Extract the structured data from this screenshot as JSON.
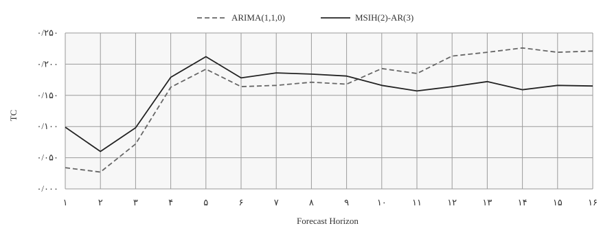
{
  "chart_data": {
    "type": "line",
    "x": [
      "۱",
      "۲",
      "۳",
      "۴",
      "۵",
      "۶",
      "۷",
      "۸",
      "۹",
      "۱۰",
      "۱۱",
      "۱۲",
      "۱۳",
      "۱۴",
      "۱۵",
      "۱۶"
    ],
    "y_ticks": [
      "۰/۰۰۰",
      "۰/۰۵۰",
      "۰/۱۰۰",
      "۰/۱۵۰",
      "۰/۲۰۰",
      "۰/۲۵۰"
    ],
    "ylim": [
      0,
      0.25
    ],
    "xlabel": "Forecast Horizon",
    "ylabel": "TC",
    "legend_position": "top-center",
    "grid": true,
    "series": [
      {
        "name": "ARIMA(1,1,0)",
        "style": "dashed",
        "color": "#666666",
        "values": [
          0.034,
          0.027,
          0.072,
          0.163,
          0.192,
          0.164,
          0.166,
          0.171,
          0.168,
          0.193,
          0.185,
          0.213,
          0.219,
          0.226,
          0.219,
          0.221
        ]
      },
      {
        "name": "MSIH(2)-AR(3)",
        "style": "solid",
        "color": "#222222",
        "values": [
          0.099,
          0.06,
          0.098,
          0.179,
          0.212,
          0.178,
          0.186,
          0.184,
          0.181,
          0.166,
          0.157,
          0.164,
          0.172,
          0.159,
          0.166,
          0.165
        ]
      }
    ]
  }
}
